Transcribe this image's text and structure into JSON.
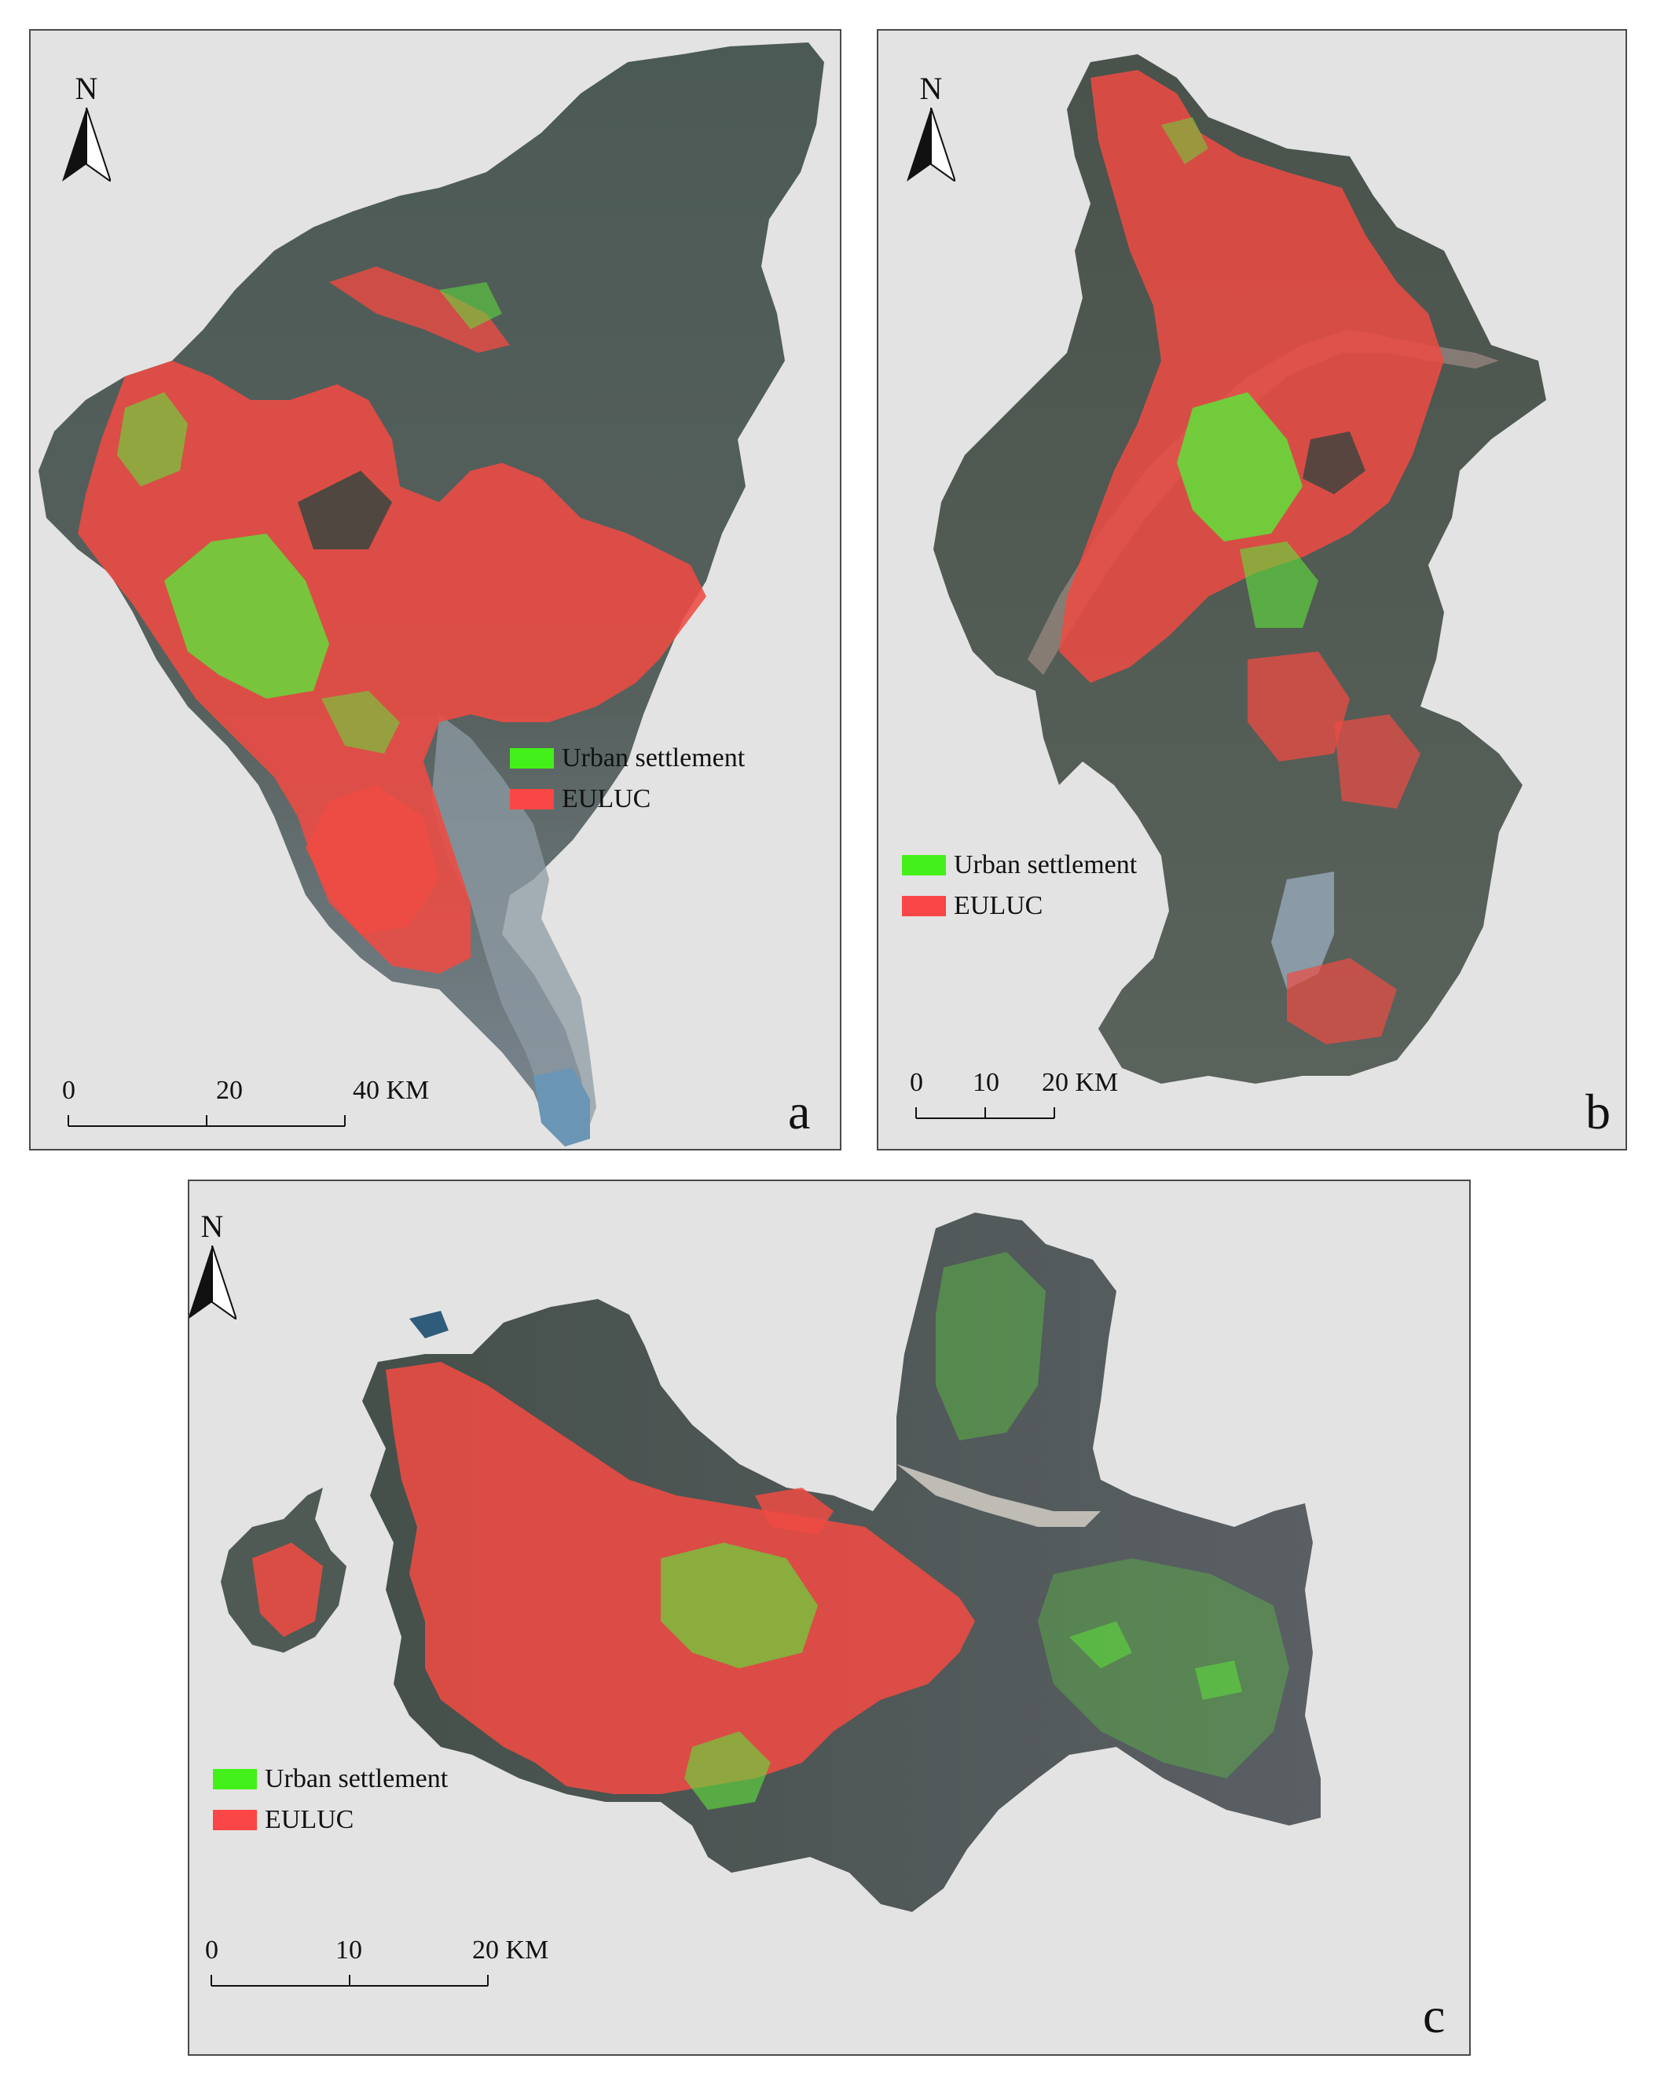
{
  "north_label": "N",
  "legend": {
    "urban_label": "Urban settlement",
    "euluc_label": "EULUC",
    "urban_color": "#44f01a",
    "euluc_color": "#fa4646"
  },
  "colors": {
    "background": "#e3e3e3",
    "land_dark": "#3f4a44",
    "land_mid": "#5c6660",
    "water": "#8c9aa3"
  },
  "panels": {
    "a": {
      "letter": "a",
      "scale": {
        "labels": [
          "0",
          "20",
          "40 KM"
        ]
      }
    },
    "b": {
      "letter": "b",
      "scale": {
        "labels": [
          "0",
          "10",
          "20 KM"
        ]
      }
    },
    "c": {
      "letter": "c",
      "scale": {
        "labels": [
          "0",
          "10",
          "20 KM"
        ]
      }
    }
  }
}
